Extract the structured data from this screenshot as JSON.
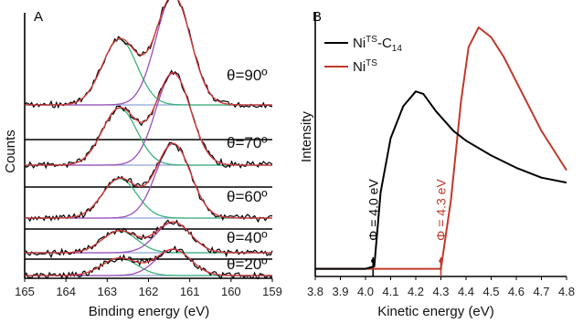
{
  "chart_data": [
    {
      "panel": "A",
      "type": "line",
      "xlabel": "Binding energy (eV)",
      "ylabel": "Counts",
      "xlim": [
        165,
        159
      ],
      "x_ticks": [
        "165",
        "164",
        "163",
        "162",
        "161",
        "160",
        "159"
      ],
      "x_reversed": true,
      "grid": false,
      "colors": {
        "data": "#000000",
        "envelope": "#d83b3b",
        "peak_high_be": "#3bb37a",
        "peak_low_be": "#9b4fb8"
      },
      "spectra": [
        {
          "label": "θ=90º",
          "peak_high_be": {
            "center": 162.7,
            "height": 0.3
          },
          "peak_low_be": {
            "center": 161.4,
            "height": 0.5
          }
        },
        {
          "label": "θ=70º",
          "peak_high_be": {
            "center": 162.7,
            "height": 0.26
          },
          "peak_low_be": {
            "center": 161.4,
            "height": 0.42
          }
        },
        {
          "label": "θ=60º",
          "peak_high_be": {
            "center": 162.7,
            "height": 0.18
          },
          "peak_low_be": {
            "center": 161.4,
            "height": 0.34
          }
        },
        {
          "label": "θ=40º",
          "peak_high_be": {
            "center": 162.7,
            "height": 0.1
          },
          "peak_low_be": {
            "center": 161.4,
            "height": 0.14
          }
        },
        {
          "label": "θ=20º",
          "peak_high_be": {
            "center": 162.7,
            "height": 0.08
          },
          "peak_low_be": {
            "center": 161.4,
            "height": 0.12
          }
        }
      ]
    },
    {
      "panel": "B",
      "type": "line",
      "xlabel": "Kinetic energy (eV)",
      "ylabel": "Intensity",
      "xlim": [
        3.8,
        4.8
      ],
      "ylim": [
        0,
        1
      ],
      "x_ticks": [
        "3.8",
        "3.9",
        "4.0",
        "4.1",
        "4.2",
        "4.3",
        "4.4",
        "4.5",
        "4.6",
        "4.7",
        "4.8"
      ],
      "grid": false,
      "legend_position": "top-left",
      "series": [
        {
          "name": "Ni",
          "name_superscript": "TS",
          "name_suffix": "-C",
          "name_subscript": "14",
          "color": "#000000",
          "x": [
            3.8,
            4.0,
            4.035,
            4.06,
            4.1,
            4.15,
            4.2,
            4.23,
            4.28,
            4.35,
            4.4,
            4.5,
            4.6,
            4.7,
            4.8
          ],
          "y": [
            0.02,
            0.02,
            0.03,
            0.33,
            0.55,
            0.68,
            0.74,
            0.73,
            0.66,
            0.58,
            0.54,
            0.48,
            0.43,
            0.39,
            0.37
          ]
        },
        {
          "name": "Ni",
          "name_superscript": "TS",
          "color": "#c0392b",
          "x": [
            3.8,
            4.0,
            4.3,
            4.34,
            4.38,
            4.41,
            4.45,
            4.5,
            4.55,
            4.6,
            4.7,
            4.8
          ],
          "y": [
            0.02,
            0.02,
            0.02,
            0.3,
            0.7,
            0.92,
            1.0,
            0.96,
            0.88,
            0.78,
            0.58,
            0.42
          ]
        }
      ],
      "annotations": [
        {
          "text": "Φ = 4.0 eV",
          "x": 4.03,
          "color": "#000000"
        },
        {
          "text": "Φ = 4.3 eV",
          "x": 4.3,
          "color": "#c0392b"
        }
      ]
    }
  ],
  "panel_letters": {
    "a": "A",
    "b": "B"
  }
}
